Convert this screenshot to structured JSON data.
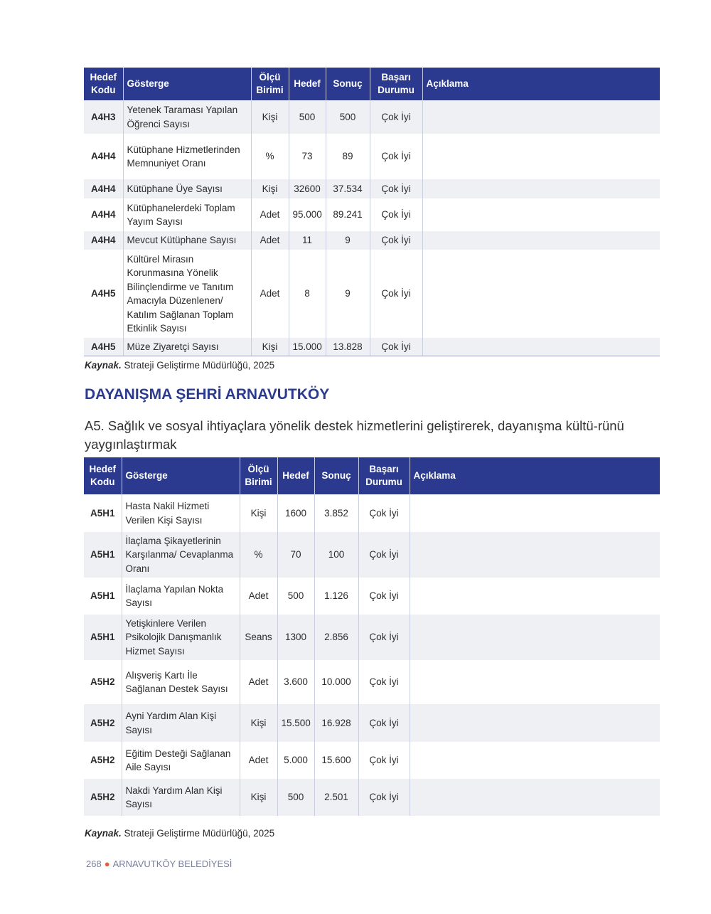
{
  "headers": {
    "code": "Hedef Kodu",
    "indicator": "Gösterge",
    "unit": "Ölçü Birimi",
    "target": "Hedef",
    "result": "Sonuç",
    "status": "Başarı Durumu",
    "note": "Açıklama"
  },
  "table1": [
    {
      "code": "A4H3",
      "indicator": "Yetenek Taraması Yapılan Öğrenci Sayısı",
      "unit": "Kişi",
      "target": "500",
      "result": "500",
      "status": "Çok İyi",
      "note": ""
    },
    {
      "code": "A4H4",
      "indicator": "Kütüphane Hizmetlerinden Memnuniyet Oranı",
      "unit": "%",
      "target": "73",
      "result": "89",
      "status": "Çok İyi",
      "note": ""
    },
    {
      "code": "A4H4",
      "indicator": "Kütüphane Üye Sayısı",
      "unit": "Kişi",
      "target": "32600",
      "result": "37.534",
      "status": "Çok İyi",
      "note": ""
    },
    {
      "code": "A4H4",
      "indicator": "Kütüphanelerdeki Toplam Yayım Sayısı",
      "unit": "Adet",
      "target": "95.000",
      "result": "89.241",
      "status": "Çok İyi",
      "note": ""
    },
    {
      "code": "A4H4",
      "indicator": "Mevcut Kütüphane Sayısı",
      "unit": "Adet",
      "target": "11",
      "result": "9",
      "status": "Çok İyi",
      "note": ""
    },
    {
      "code": "A4H5",
      "indicator": "Kültürel Mirasın Korunmasına Yönelik Bilinçlendirme ve Tanıtım Amacıyla Düzenlenen/ Katılım Sağlanan Toplam Etkinlik Sayısı",
      "unit": "Adet",
      "target": "8",
      "result": "9",
      "status": "Çok İyi",
      "note": ""
    },
    {
      "code": "A4H5",
      "indicator": "Müze Ziyaretçi Sayısı",
      "unit": "Kişi",
      "target": "15.000",
      "result": "13.828",
      "status": "Çok İyi",
      "note": ""
    }
  ],
  "source1": {
    "label": "Kaynak.",
    "text": " Strateji Geliştirme Müdürlüğü, 2025"
  },
  "section_title": "DAYANIŞMA ŞEHRİ ARNAVUTKÖY",
  "goal": "A5. Sağlık ve sosyal ihtiyaçlara yönelik destek hizmetlerini geliştirerek, dayanışma kültü-rünü yaygınlaştırmak",
  "table2": [
    {
      "code": "A5H1",
      "indicator": "Hasta Nakil Hizmeti Verilen Kişi Sayısı",
      "unit": "Kişi",
      "target": "1600",
      "result": "3.852",
      "status": "Çok İyi",
      "note": ""
    },
    {
      "code": "A5H1",
      "indicator": "İlaçlama Şikayetlerinin Karşılanma/ Cevaplanma Oranı",
      "unit": "%",
      "target": "70",
      "result": "100",
      "status": "Çok İyi",
      "note": ""
    },
    {
      "code": "A5H1",
      "indicator": "İlaçlama Yapılan Nokta Sayısı",
      "unit": "Adet",
      "target": "500",
      "result": "1.126",
      "status": "Çok İyi",
      "note": ""
    },
    {
      "code": "A5H1",
      "indicator": "Yetişkinlere Verilen Psikolojik Danışmanlık Hizmet Sayısı",
      "unit": "Seans",
      "target": "1300",
      "result": "2.856",
      "status": "Çok İyi",
      "note": ""
    },
    {
      "code": "A5H2",
      "indicator": "Alışveriş Kartı İle Sağlanan Destek Sayısı",
      "unit": "Adet",
      "target": "3.600",
      "result": "10.000",
      "status": "Çok İyi",
      "note": ""
    },
    {
      "code": "A5H2",
      "indicator": "Ayni Yardım Alan Kişi Sayısı",
      "unit": "Kişi",
      "target": "15.500",
      "result": "16.928",
      "status": "Çok İyi",
      "note": ""
    },
    {
      "code": "A5H2",
      "indicator": "Eğitim Desteği Sağlanan Aile Sayısı",
      "unit": "Adet",
      "target": "5.000",
      "result": "15.600",
      "status": "Çok İyi",
      "note": ""
    },
    {
      "code": "A5H2",
      "indicator": "Nakdi Yardım Alan Kişi Sayısı",
      "unit": "Kişi",
      "target": "500",
      "result": "2.501",
      "status": "Çok İyi",
      "note": ""
    }
  ],
  "source2": {
    "label": "Kaynak.",
    "text": " Strateji Geliştirme Müdürlüğü, 2025"
  },
  "footer": {
    "page": "268",
    "org": "ARNAVUTKÖY BELEDİYESİ"
  },
  "colors": {
    "header": "#2b3a8e",
    "stripe": "#eef0f4",
    "bullet": "#e0603a"
  }
}
